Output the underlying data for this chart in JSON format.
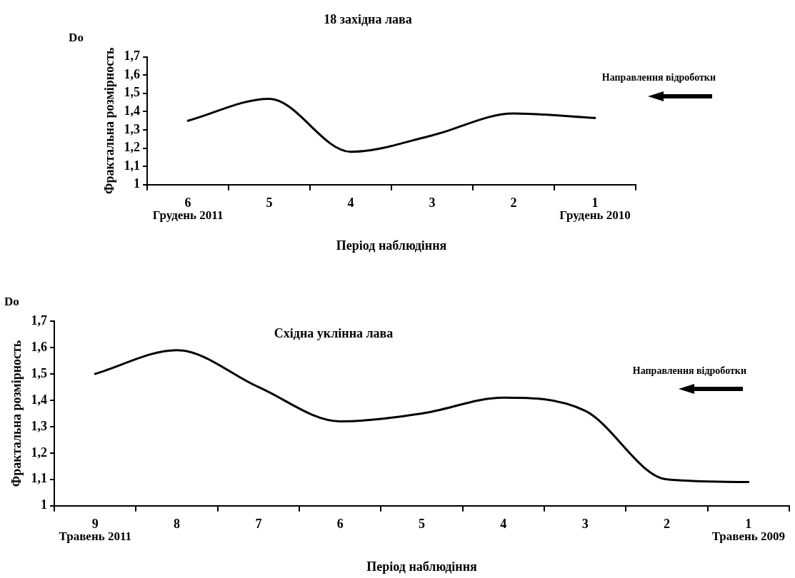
{
  "chart_data": [
    {
      "type": "line",
      "title": "18 західна лава",
      "xlabel": "Період наблюдіння",
      "ylabel": "Фрактальна розмірность",
      "categories": [
        "6",
        "5",
        "4",
        "3",
        "2",
        "1"
      ],
      "series": [
        {
          "color": "#000000",
          "values": [
            1.35,
            1.47,
            1.18,
            1.27,
            1.39,
            1.365
          ]
        }
      ],
      "ylim": [
        1,
        1.7
      ],
      "yticks": [
        1,
        {
          "value": 1.1,
          "label": "1,1"
        },
        {
          "value": 1.2,
          "label": "1,2"
        },
        {
          "value": 1.3,
          "label": "1,3"
        },
        {
          "value": 1.4,
          "label": "1,4"
        },
        {
          "value": 1.5,
          "label": "1,5"
        },
        {
          "value": 1.6,
          "label": "1,6"
        },
        {
          "value": 1.7,
          "label": "1,7"
        }
      ],
      "grid": false,
      "legend": false,
      "marker": "none",
      "line_style": "solid",
      "annotations": [
        "Do",
        "Направлення відроботки",
        "Грудень 2011",
        "Грудень 2010"
      ]
    },
    {
      "type": "line",
      "title": "Східна уклінна лава",
      "xlabel": "Період наблюдіння",
      "ylabel": "Фрактальна розмірность",
      "categories": [
        "9",
        "8",
        "7",
        "6",
        "5",
        "4",
        "3",
        "2",
        "1"
      ],
      "series": [
        {
          "color": "#000000",
          "values": [
            1.5,
            1.59,
            1.45,
            1.32,
            1.35,
            1.41,
            1.36,
            1.1,
            1.09
          ]
        }
      ],
      "ylim": [
        1,
        1.7
      ],
      "yticks": [
        1,
        {
          "value": 1.1,
          "label": "1,1"
        },
        {
          "value": 1.2,
          "label": "1,2"
        },
        {
          "value": 1.3,
          "label": "1,3"
        },
        {
          "value": 1.4,
          "label": "1,4"
        },
        {
          "value": 1.5,
          "label": "1,5"
        },
        {
          "value": 1.6,
          "label": "1,6"
        },
        {
          "value": 1.7,
          "label": "1,7"
        }
      ],
      "grid": false,
      "legend": false,
      "marker": "none",
      "line_style": "solid",
      "annotations": [
        "Do",
        "Направлення відроботки",
        "Травень 2011",
        "Травень 2009"
      ]
    }
  ]
}
